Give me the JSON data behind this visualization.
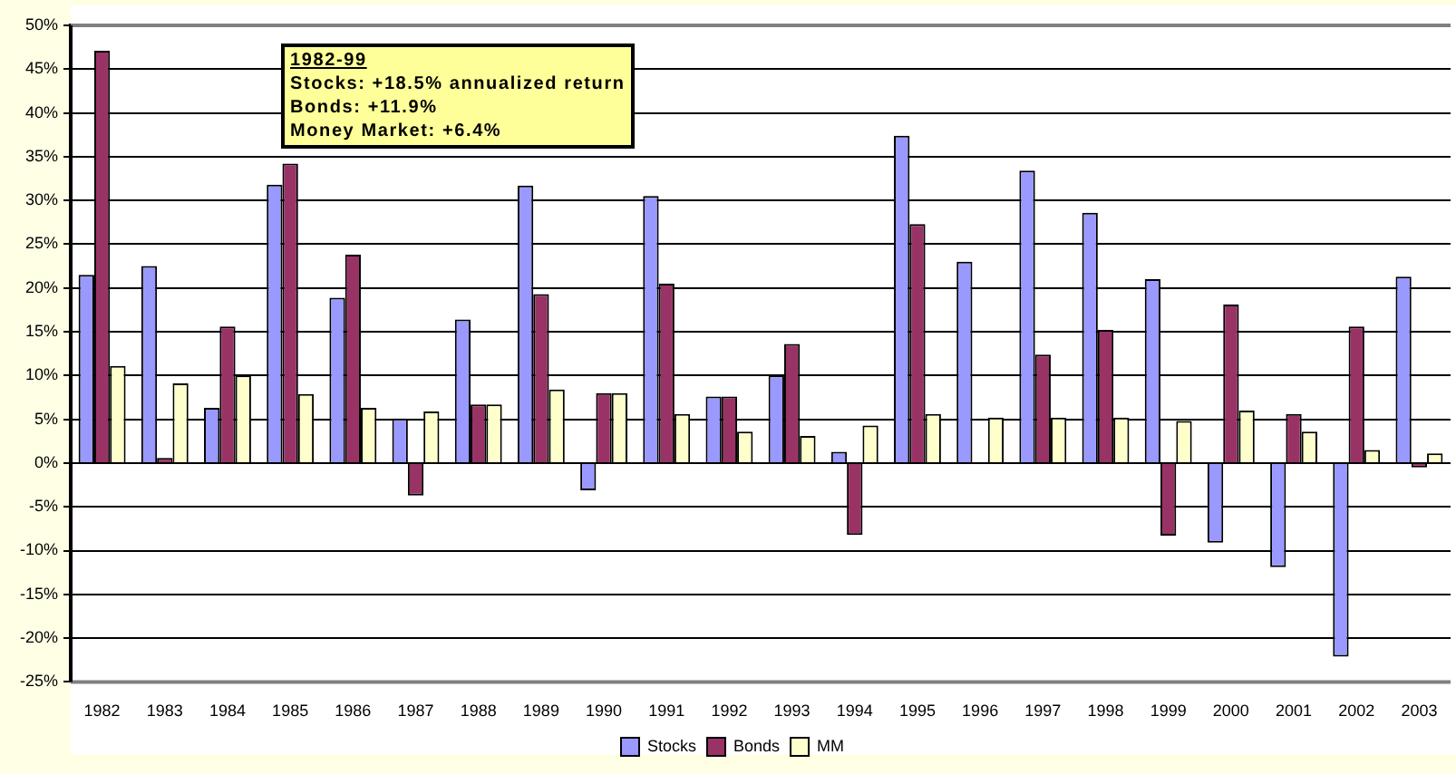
{
  "chart_data": {
    "type": "bar",
    "categories": [
      "1982",
      "1983",
      "1984",
      "1985",
      "1986",
      "1987",
      "1988",
      "1989",
      "1990",
      "1991",
      "1992",
      "1993",
      "1994",
      "1995",
      "1996",
      "1997",
      "1998",
      "1999",
      "2000",
      "2001",
      "2002",
      "2003"
    ],
    "series": [
      {
        "name": "Stocks",
        "color": "#9999ff",
        "values": [
          21.5,
          22.5,
          6.3,
          31.8,
          18.9,
          5.1,
          16.4,
          31.7,
          -3.1,
          30.5,
          7.6,
          10.0,
          1.3,
          37.4,
          23.0,
          33.4,
          28.6,
          21.0,
          -9.1,
          -11.9,
          -22.1,
          21.3
        ]
      },
      {
        "name": "Bonds",
        "color": "#993366",
        "values": [
          47.1,
          0.6,
          15.6,
          34.2,
          23.8,
          -3.7,
          6.7,
          19.3,
          8.0,
          20.5,
          7.6,
          13.6,
          -8.2,
          27.3,
          null,
          12.4,
          15.2,
          -8.3,
          18.1,
          5.6,
          15.6,
          -0.5
        ]
      },
      {
        "name": "MM",
        "color": "#ffffcc",
        "values": [
          11.1,
          9.1,
          10.0,
          7.9,
          6.3,
          5.9,
          6.7,
          8.4,
          8.0,
          5.6,
          3.6,
          3.1,
          4.3,
          5.6,
          5.2,
          5.2,
          5.2,
          4.8,
          6.0,
          3.6,
          1.5,
          1.1
        ]
      }
    ],
    "ylim": [
      -25,
      50
    ],
    "yticks": [
      {
        "value": -25,
        "label": "-25%"
      },
      {
        "value": -20,
        "label": "-20%"
      },
      {
        "value": -15,
        "label": "-15%"
      },
      {
        "value": -10,
        "label": "-10%"
      },
      {
        "value": -5,
        "label": "-5%"
      },
      {
        "value": 0,
        "label": "0%"
      },
      {
        "value": 5,
        "label": "5%"
      },
      {
        "value": 10,
        "label": "10%"
      },
      {
        "value": 15,
        "label": "15%"
      },
      {
        "value": 20,
        "label": "20%"
      },
      {
        "value": 25,
        "label": "25%"
      },
      {
        "value": 30,
        "label": "30%"
      },
      {
        "value": 35,
        "label": "35%"
      },
      {
        "value": 40,
        "label": "40%"
      },
      {
        "value": 45,
        "label": "45%"
      },
      {
        "value": 50,
        "label": "50%"
      }
    ],
    "grid": "y",
    "legend": "bottom",
    "annotations": [
      "1982-99",
      "Stocks: +18.5% annualized return",
      "Bonds: +11.9%",
      "Money Market: +6.4%"
    ]
  }
}
